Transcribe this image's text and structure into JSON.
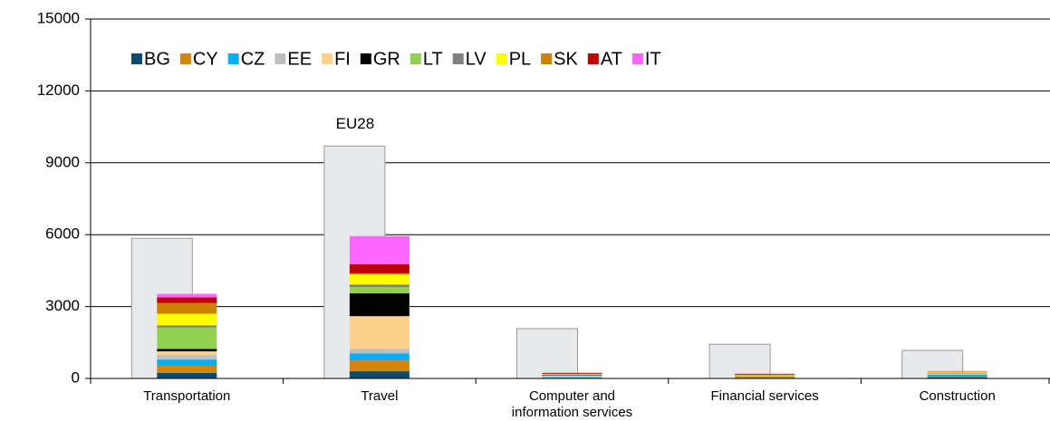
{
  "chart_data": {
    "type": "bar",
    "stacked": true,
    "categories": [
      "Transportation",
      "Travel",
      "Computer and information services",
      "Financial services",
      "Construction"
    ],
    "reference": {
      "name": "EU28",
      "color": "#e8e9eb",
      "values": [
        5850,
        9700,
        2080,
        1430,
        1170
      ]
    },
    "series": [
      {
        "name": "BG",
        "color": "#0d4a70",
        "values": [
          230,
          300,
          10,
          10,
          50
        ]
      },
      {
        "name": "CY",
        "color": "#d4860b",
        "values": [
          300,
          450,
          30,
          60,
          20
        ]
      },
      {
        "name": "CZ",
        "color": "#00b0f0",
        "values": [
          260,
          300,
          20,
          20,
          90
        ]
      },
      {
        "name": "EE",
        "color": "#bfbfbf",
        "values": [
          190,
          190,
          10,
          5,
          10
        ]
      },
      {
        "name": "FI",
        "color": "#fdd08e",
        "values": [
          150,
          1360,
          60,
          20,
          40
        ]
      },
      {
        "name": "GR",
        "color": "#000000",
        "values": [
          100,
          950,
          20,
          10,
          10
        ]
      },
      {
        "name": "LT",
        "color": "#92d050",
        "values": [
          900,
          260,
          10,
          5,
          20
        ]
      },
      {
        "name": "LV",
        "color": "#808080",
        "values": [
          80,
          110,
          10,
          5,
          10
        ]
      },
      {
        "name": "PL",
        "color": "#ffff00",
        "values": [
          490,
          420,
          20,
          20,
          30
        ]
      },
      {
        "name": "SK",
        "color": "#cc8400",
        "values": [
          450,
          50,
          10,
          10,
          10
        ]
      },
      {
        "name": "AT",
        "color": "#c00000",
        "values": [
          230,
          380,
          30,
          30,
          10
        ]
      },
      {
        "name": "IT",
        "color": "#ff66ff",
        "values": [
          150,
          1170,
          20,
          5,
          10
        ]
      }
    ],
    "ylim": [
      0,
      15000
    ],
    "yticks": [
      0,
      3000,
      6000,
      9000,
      12000,
      15000
    ],
    "grid": true
  }
}
